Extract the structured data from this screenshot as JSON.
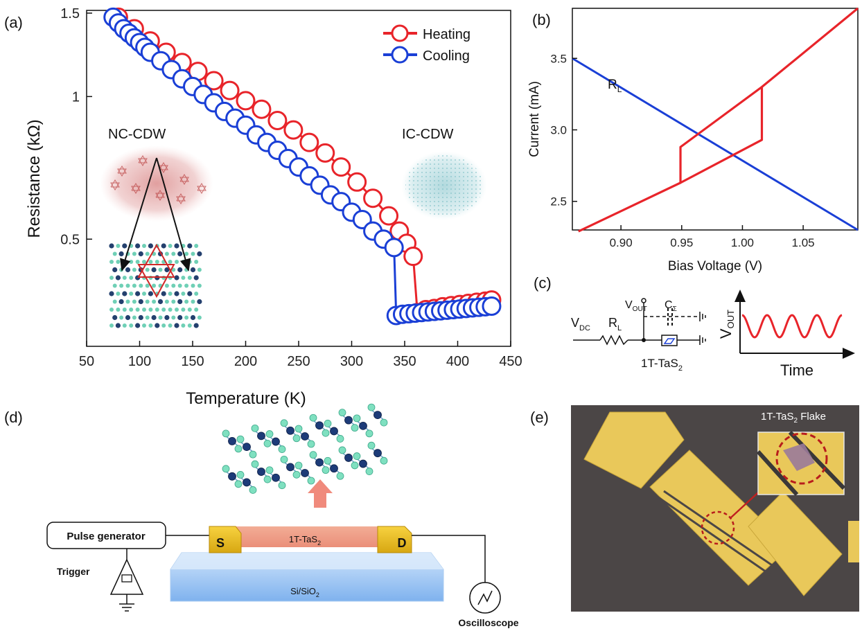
{
  "panels": {
    "a": "(a)",
    "b": "(b)",
    "c": "(c)",
    "d": "(d)",
    "e": "(e)"
  },
  "chart_data": [
    {
      "panel": "a",
      "type": "scatter",
      "xlabel": "Temperature (K)",
      "ylabel": "Resistance (kΩ)",
      "xlim": [
        50,
        450
      ],
      "ylim": [
        0.3,
        1.5
      ],
      "yscale": "log",
      "x_ticks": [
        "50",
        "100",
        "150",
        "200",
        "250",
        "300",
        "350",
        "400",
        "450"
      ],
      "y_ticks": [
        {
          "value": 1.5,
          "label": "1.5"
        },
        {
          "value": 1.0,
          "label": "1"
        },
        {
          "value": 0.5,
          "label": "0.5"
        }
      ],
      "legend_position": "top-right",
      "series": [
        {
          "name": "Heating",
          "color": "#e8242a",
          "x": [
            80,
            95,
            110,
            125,
            140,
            155,
            170,
            185,
            200,
            215,
            230,
            245,
            260,
            275,
            290,
            305,
            320,
            335,
            345,
            352,
            358,
            362,
            370,
            378,
            386,
            394,
            402,
            410,
            418,
            426,
            432
          ],
          "y": [
            1.47,
            1.39,
            1.31,
            1.24,
            1.18,
            1.13,
            1.08,
            1.03,
            0.98,
            0.94,
            0.89,
            0.85,
            0.8,
            0.76,
            0.71,
            0.66,
            0.61,
            0.56,
            0.52,
            0.49,
            0.46,
            0.35,
            0.355,
            0.357,
            0.36,
            0.362,
            0.364,
            0.366,
            0.368,
            0.37,
            0.372
          ]
        },
        {
          "name": "Cooling",
          "color": "#1a3fd6",
          "x": [
            75,
            80,
            85,
            90,
            95,
            100,
            105,
            110,
            120,
            130,
            140,
            150,
            160,
            170,
            180,
            190,
            200,
            210,
            220,
            230,
            240,
            250,
            260,
            270,
            280,
            290,
            300,
            310,
            320,
            330,
            340,
            342,
            348,
            354,
            360,
            366,
            372,
            378,
            384,
            390,
            396,
            402,
            408,
            414,
            420,
            426,
            432
          ],
          "y": [
            1.47,
            1.43,
            1.39,
            1.36,
            1.33,
            1.3,
            1.27,
            1.24,
            1.19,
            1.14,
            1.09,
            1.05,
            1.01,
            0.97,
            0.93,
            0.9,
            0.87,
            0.83,
            0.8,
            0.77,
            0.74,
            0.71,
            0.68,
            0.65,
            0.62,
            0.6,
            0.57,
            0.55,
            0.52,
            0.5,
            0.48,
            0.345,
            0.347,
            0.348,
            0.349,
            0.35,
            0.351,
            0.352,
            0.353,
            0.354,
            0.355,
            0.356,
            0.357,
            0.358,
            0.359,
            0.36,
            0.361
          ]
        }
      ],
      "annotations": [
        "NC-CDW",
        "IC-CDW"
      ]
    },
    {
      "panel": "b",
      "type": "line",
      "xlabel": "Bias Voltage (V)",
      "ylabel": "Current (mA)",
      "xlim": [
        0.86,
        1.095
      ],
      "ylim": [
        2.3,
        3.85
      ],
      "x_ticks": [
        {
          "value": 0.9,
          "label": "0.90"
        },
        {
          "value": 0.95,
          "label": "0.95"
        },
        {
          "value": 1.0,
          "label": "1.00"
        },
        {
          "value": 1.05,
          "label": "1.05"
        }
      ],
      "y_ticks": [
        {
          "value": 2.5,
          "label": "2.5"
        },
        {
          "value": 3.0,
          "label": "3.0"
        },
        {
          "value": 3.5,
          "label": "3.5"
        }
      ],
      "series": [
        {
          "name": "RL",
          "color": "#1a3fd6",
          "x": [
            0.86,
            1.095
          ],
          "y": [
            3.5,
            2.3
          ]
        },
        {
          "name": "",
          "color": "#e8242a",
          "x": [
            0.865,
            0.949,
            0.949,
            1.016,
            1.016,
            1.095
          ],
          "y": [
            2.29,
            2.63,
            2.88,
            3.3,
            3.3,
            3.85
          ]
        },
        {
          "name": "",
          "color": "#e8242a",
          "x": [
            0.949,
            1.016,
            1.016
          ],
          "y": [
            2.63,
            2.93,
            3.3
          ]
        }
      ],
      "annotations": [
        "R",
        "L"
      ]
    }
  ],
  "circuit_c": {
    "vdc": "V",
    "vdc_sub": "DC",
    "rl": "R",
    "rl_sub": "L",
    "vout": "V",
    "vout_sub": "OUT",
    "csigma": "C",
    "csigma_sub": "Σ",
    "device": "1T-TaS",
    "device_sub": "2",
    "axis_y": "V",
    "axis_y_sub": "OUT",
    "axis_x": "Time"
  },
  "schematic_d": {
    "pulse_generator": "Pulse generator",
    "trigger": "Trigger",
    "source": "S",
    "drain": "D",
    "channel": "1T-TaS",
    "channel_sub": "2",
    "substrate": "Si/SiO",
    "substrate_sub": "2",
    "oscilloscope": "Oscilloscope"
  },
  "micrograph_e": {
    "flake_label": "1T-TaS",
    "flake_label_sub": "2",
    "flake_label_suffix": " Flake"
  },
  "colors": {
    "heating": "#e8242a",
    "cooling": "#1a3fd6",
    "gold": "#e9c85a",
    "dark_bg": "#4b4646"
  }
}
